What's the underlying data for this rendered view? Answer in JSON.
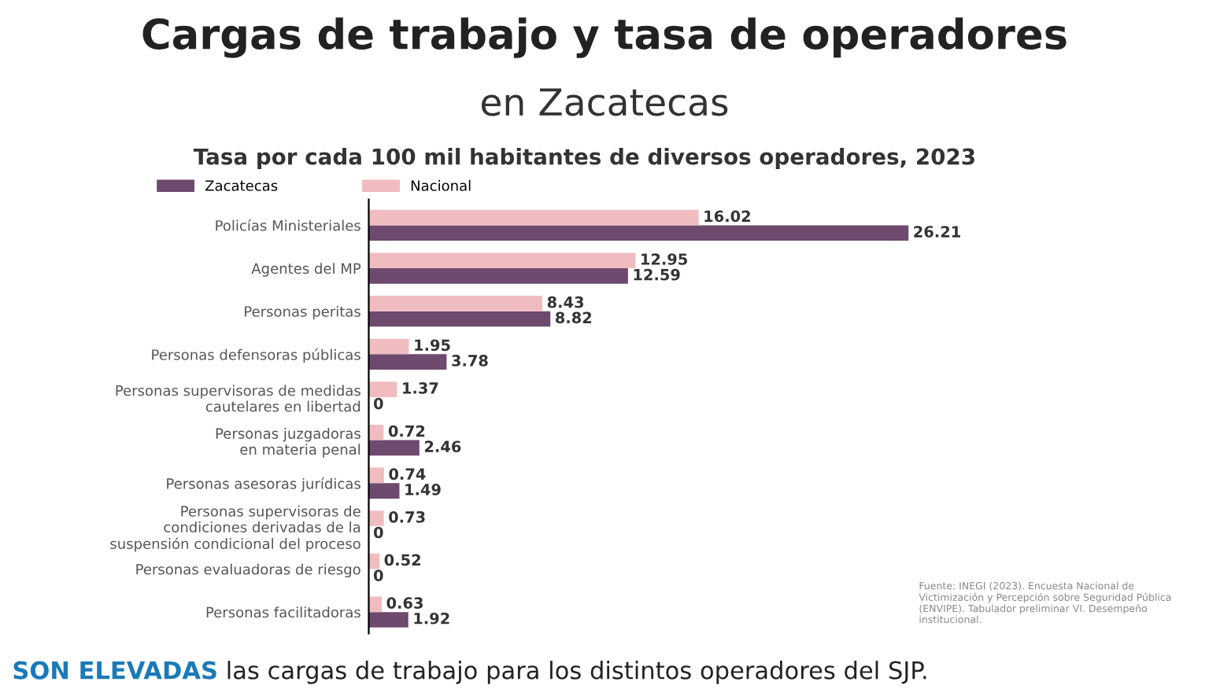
{
  "chart_data": {
    "type": "bar",
    "orientation": "horizontal",
    "title": "Cargas de trabajo y tasa de operadores",
    "subtitle": "en Zacatecas",
    "categories": [
      "Policías Ministeriales",
      "Agentes del MP",
      "Personas peritas",
      "Personas defensoras públicas",
      "Personas supervisoras de medidas\ncautelares en libertad",
      "Personas juzgadoras\nen materia penal",
      "Personas asesoras jurídicas",
      "Personas supervisoras de\ncondiciones derivadas de la\nsuspensión condicional del proceso",
      "Personas evaluadoras de riesgo",
      "Personas facilitadoras"
    ],
    "series": [
      {
        "name": "Zacatecas",
        "color": "#6e4a6e",
        "values": [
          26.21,
          12.59,
          8.82,
          3.78,
          0,
          2.46,
          1.49,
          0,
          0,
          1.92
        ]
      },
      {
        "name": "Nacional",
        "color": "#f0bcc0",
        "values": [
          16.02,
          12.95,
          8.43,
          1.95,
          1.37,
          0.72,
          0.74,
          0.73,
          0.52,
          0.63
        ]
      }
    ],
    "data_labels": true,
    "legend": "top left",
    "grid": false,
    "annotations": [
      "Tasa por cada 100 mil habitantes de diversos operadores, 2023",
      "Fuente: INEGI (2023). Encuesta Nacional de Victimización y Percepción sobre Seguridad Pública (ENVIPE). Tabulador preliminar VI. Desempeño institucional.",
      "SON ELEVADAS",
      "las cargas de trabajo para los distintos operadores del SJP."
    ]
  }
}
